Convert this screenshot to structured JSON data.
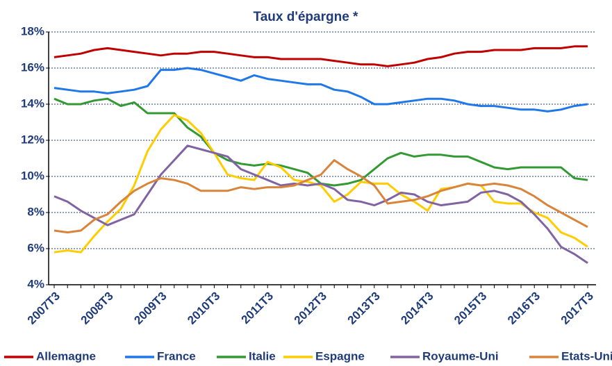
{
  "chart_data": {
    "type": "line",
    "title": "Taux d'épargne *",
    "categories": [
      "2007T3",
      null,
      null,
      null,
      "2008T3",
      null,
      null,
      null,
      "2009T3",
      null,
      null,
      null,
      "2010T3",
      null,
      null,
      null,
      "2011T3",
      null,
      null,
      null,
      "2012T3",
      null,
      null,
      null,
      "2013T3",
      null,
      null,
      null,
      "2014T3",
      null,
      null,
      null,
      "2015T3",
      null,
      null,
      null,
      "2016T3",
      null,
      null,
      null,
      "2017T3"
    ],
    "ylim": [
      4,
      18
    ],
    "yticks": [
      {
        "value": 4,
        "label": "4%"
      },
      {
        "value": 6,
        "label": "6%"
      },
      {
        "value": 8,
        "label": "8%"
      },
      {
        "value": 10,
        "label": "10%"
      },
      {
        "value": 12,
        "label": "12%"
      },
      {
        "value": 14,
        "label": "14%"
      },
      {
        "value": 16,
        "label": "16%"
      },
      {
        "value": 18,
        "label": "18%"
      }
    ],
    "grid": true,
    "legend": "bottom",
    "series": [
      {
        "name": "Allemagne",
        "color": "#c00000",
        "values": [
          16.6,
          16.7,
          16.8,
          17.0,
          17.1,
          17.0,
          16.9,
          16.8,
          16.7,
          16.8,
          16.8,
          16.9,
          16.9,
          16.8,
          16.7,
          16.6,
          16.6,
          16.5,
          16.5,
          16.5,
          16.5,
          16.4,
          16.3,
          16.2,
          16.2,
          16.1,
          16.2,
          16.3,
          16.5,
          16.6,
          16.8,
          16.9,
          16.9,
          17.0,
          17.0,
          17.0,
          17.1,
          17.1,
          17.1,
          17.2,
          17.2
        ]
      },
      {
        "name": "France",
        "color": "#1f77e8",
        "values": [
          14.9,
          14.8,
          14.7,
          14.7,
          14.6,
          14.7,
          14.8,
          15.0,
          15.9,
          15.9,
          16.0,
          15.9,
          15.7,
          15.5,
          15.3,
          15.6,
          15.4,
          15.3,
          15.2,
          15.1,
          15.1,
          14.8,
          14.7,
          14.4,
          14.0,
          14.0,
          14.1,
          14.2,
          14.3,
          14.3,
          14.2,
          14.0,
          13.9,
          13.9,
          13.8,
          13.7,
          13.7,
          13.6,
          13.7,
          13.9,
          14.0
        ]
      },
      {
        "name": "Italie",
        "color": "#339933",
        "values": [
          14.3,
          14.0,
          14.0,
          14.2,
          14.3,
          13.9,
          14.1,
          13.5,
          13.5,
          13.5,
          12.7,
          12.2,
          11.3,
          10.9,
          10.7,
          10.6,
          10.7,
          10.6,
          10.4,
          10.2,
          9.6,
          9.5,
          9.6,
          9.8,
          10.4,
          11.0,
          11.3,
          11.1,
          11.2,
          11.2,
          11.1,
          11.1,
          10.8,
          10.5,
          10.4,
          10.5,
          10.5,
          10.5,
          10.5,
          9.9,
          9.8
        ]
      },
      {
        "name": "Espagne",
        "color": "#ffcc00",
        "values": [
          5.8,
          5.9,
          5.8,
          6.7,
          7.5,
          8.2,
          9.5,
          11.4,
          12.6,
          13.4,
          13.1,
          12.4,
          11.3,
          10.1,
          9.9,
          9.8,
          10.8,
          10.5,
          9.8,
          9.7,
          9.5,
          8.6,
          9.0,
          9.7,
          9.6,
          9.6,
          9.0,
          8.6,
          8.1,
          9.3,
          9.4,
          9.6,
          9.5,
          8.6,
          8.5,
          8.5,
          8.0,
          7.7,
          6.9,
          6.6,
          6.1
        ]
      },
      {
        "name": "Royaume-Uni",
        "color": "#8064a2",
        "values": [
          8.9,
          8.6,
          8.1,
          7.7,
          7.3,
          7.6,
          7.9,
          9.0,
          10.1,
          10.9,
          11.7,
          11.5,
          11.3,
          11.1,
          10.4,
          10.1,
          9.8,
          9.5,
          9.6,
          9.5,
          9.6,
          9.3,
          8.7,
          8.6,
          8.4,
          8.7,
          9.1,
          9.0,
          8.6,
          8.4,
          8.5,
          8.6,
          9.1,
          9.2,
          9.0,
          8.6,
          7.9,
          7.1,
          6.1,
          5.7,
          5.2
        ]
      },
      {
        "name": "Etats-Unis",
        "color": "#d9843b",
        "values": [
          7.0,
          6.9,
          7.0,
          7.6,
          7.9,
          8.6,
          9.2,
          9.6,
          9.9,
          9.8,
          9.6,
          9.2,
          9.2,
          9.2,
          9.4,
          9.3,
          9.4,
          9.4,
          9.5,
          9.8,
          10.1,
          10.9,
          10.4,
          10.0,
          9.5,
          8.5,
          8.6,
          8.7,
          8.9,
          9.2,
          9.4,
          9.6,
          9.5,
          9.6,
          9.5,
          9.3,
          8.9,
          8.4,
          8.0,
          7.6,
          7.2
        ]
      }
    ]
  }
}
